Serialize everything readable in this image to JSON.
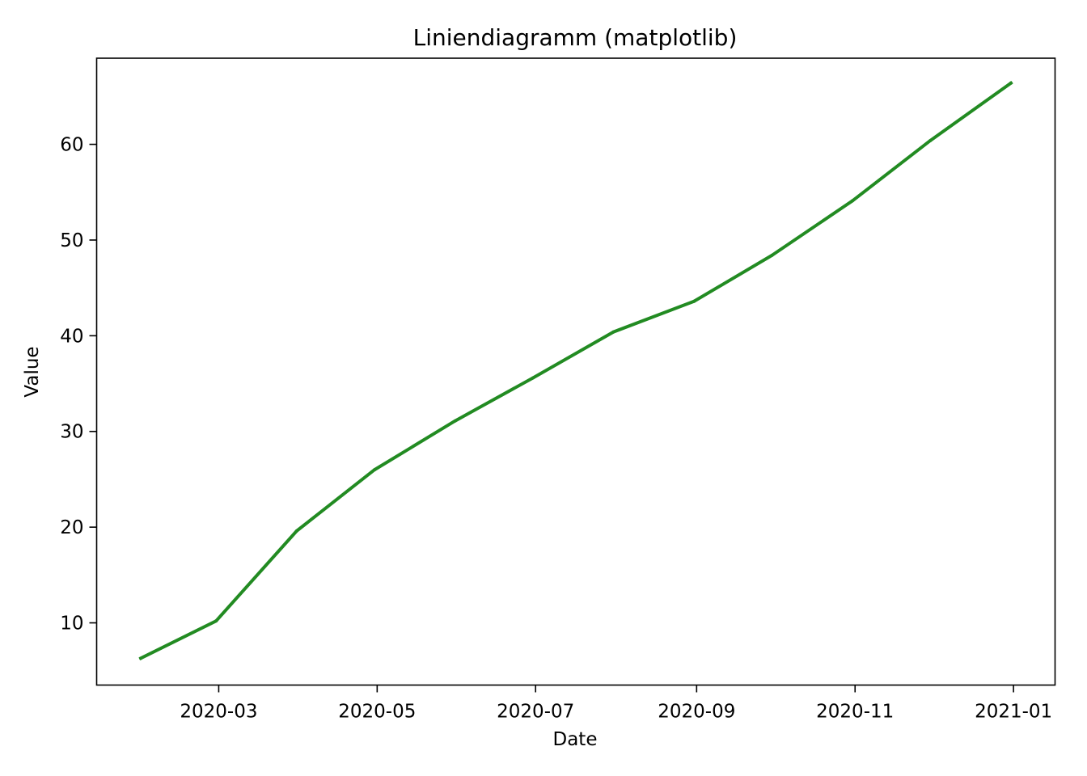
{
  "chart_data": {
    "type": "line",
    "title": "Liniendiagramm (matplotlib)",
    "xlabel": "Date",
    "ylabel": "Value",
    "xlim": [
      "2020-01-14",
      "2021-01-17"
    ],
    "ylim": [
      3.5,
      69.0
    ],
    "grid": false,
    "legend": "none",
    "x_ticks": [
      {
        "date": "2020-03-01",
        "label": "2020-03"
      },
      {
        "date": "2020-05-01",
        "label": "2020-05"
      },
      {
        "date": "2020-07-01",
        "label": "2020-07"
      },
      {
        "date": "2020-09-01",
        "label": "2020-09"
      },
      {
        "date": "2020-11-01",
        "label": "2020-11"
      },
      {
        "date": "2021-01-01",
        "label": "2021-01"
      }
    ],
    "y_ticks": [
      10,
      20,
      30,
      40,
      50,
      60
    ],
    "x": [
      "2020-01-31",
      "2020-02-29",
      "2020-03-31",
      "2020-04-30",
      "2020-05-31",
      "2020-06-30",
      "2020-07-31",
      "2020-08-31",
      "2020-09-30",
      "2020-10-31",
      "2020-11-30",
      "2020-12-31"
    ],
    "series": [
      {
        "color": "#228b22",
        "values": [
          6.3,
          10.2,
          19.6,
          26.0,
          31.1,
          35.6,
          40.4,
          43.6,
          48.4,
          54.1,
          60.4,
          66.4
        ]
      }
    ]
  }
}
